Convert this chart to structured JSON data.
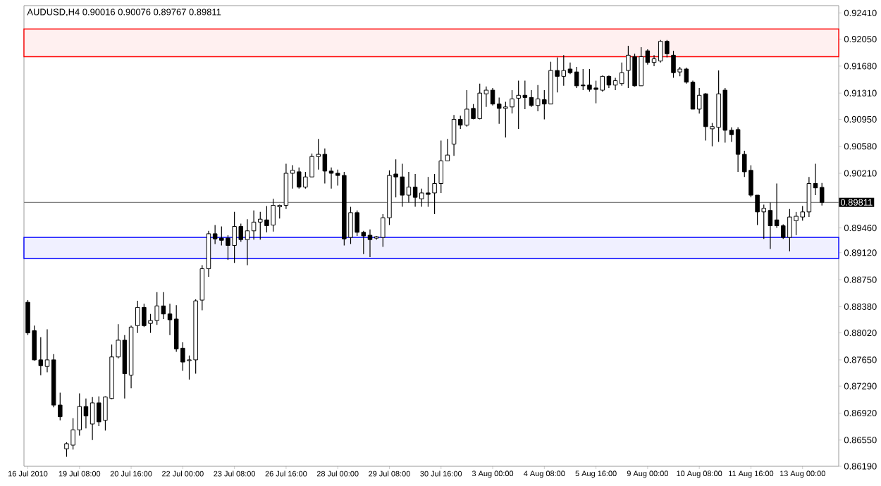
{
  "chart_data": {
    "type": "candlestick",
    "title": "AUDUSD,H4  0.90016 0.90076 0.89767 0.89811",
    "categories": [
      "16 Jul 2010",
      null,
      null,
      null,
      null,
      null,
      null,
      null,
      "19 Jul 08:00",
      null,
      null,
      null,
      null,
      null,
      null,
      null,
      "20 Jul 16:00",
      null,
      null,
      null,
      null,
      null,
      null,
      null,
      "22 Jul 00:00",
      null,
      null,
      null,
      null,
      null,
      null,
      null,
      "23 Jul 08:00",
      null,
      null,
      null,
      null,
      null,
      null,
      null,
      "26 Jul 16:00",
      null,
      null,
      null,
      null,
      null,
      null,
      null,
      "28 Jul 00:00",
      null,
      null,
      null,
      null,
      null,
      null,
      null,
      "29 Jul 08:00",
      null,
      null,
      null,
      null,
      null,
      null,
      null,
      "30 Jul 16:00",
      null,
      null,
      null,
      null,
      null,
      null,
      null,
      "3 Aug 00:00",
      null,
      null,
      null,
      null,
      null,
      null,
      null,
      "4 Aug 08:00",
      null,
      null,
      null,
      null,
      null,
      null,
      null,
      "5 Aug 16:00",
      null,
      null,
      null,
      null,
      null,
      null,
      null,
      "9 Aug 00:00",
      null,
      null,
      null,
      null,
      null,
      null,
      null,
      "10 Aug 08:00",
      null,
      null,
      null,
      null,
      null,
      null,
      null,
      "11 Aug 16:00",
      null,
      null,
      null,
      null,
      null,
      null,
      null,
      "13 Aug 00:00",
      null,
      null,
      null
    ],
    "ohlc": [
      [
        0.8844,
        0.8847,
        0.8799,
        0.8802
      ],
      [
        0.8805,
        0.8812,
        0.8764,
        0.8765
      ],
      [
        0.8765,
        0.8796,
        0.8744,
        0.8757
      ],
      [
        0.8756,
        0.8807,
        0.8748,
        0.8765
      ],
      [
        0.8765,
        0.8773,
        0.87,
        0.8703
      ],
      [
        0.8703,
        0.872,
        0.8682,
        0.8687
      ],
      [
        0.8643,
        0.8652,
        0.8632,
        0.865
      ],
      [
        0.8648,
        0.8685,
        0.8642,
        0.8669
      ],
      [
        0.8669,
        0.8719,
        0.8661,
        0.8701
      ],
      [
        0.8701,
        0.8712,
        0.8671,
        0.8688
      ],
      [
        0.8677,
        0.8714,
        0.8655,
        0.8706
      ],
      [
        0.8706,
        0.8715,
        0.8674,
        0.868
      ],
      [
        0.8682,
        0.8715,
        0.8668,
        0.8714
      ],
      [
        0.8712,
        0.8786,
        0.8711,
        0.8769
      ],
      [
        0.8769,
        0.8814,
        0.8767,
        0.8792
      ],
      [
        0.8792,
        0.8799,
        0.8712,
        0.8746
      ],
      [
        0.8744,
        0.8812,
        0.8726,
        0.881
      ],
      [
        0.8812,
        0.8846,
        0.8802,
        0.8837
      ],
      [
        0.8837,
        0.8842,
        0.881,
        0.8812
      ],
      [
        0.8815,
        0.8828,
        0.8802,
        0.8819
      ],
      [
        0.8819,
        0.8858,
        0.8813,
        0.8839
      ],
      [
        0.8839,
        0.8858,
        0.8821,
        0.8828
      ],
      [
        0.8828,
        0.8842,
        0.8799,
        0.882
      ],
      [
        0.8821,
        0.884,
        0.8776,
        0.878
      ],
      [
        0.8781,
        0.8789,
        0.875,
        0.8762
      ],
      [
        0.8764,
        0.8771,
        0.8738,
        0.8765
      ],
      [
        0.8765,
        0.8848,
        0.8746,
        0.8846
      ],
      [
        0.8847,
        0.8895,
        0.8833,
        0.889
      ],
      [
        0.889,
        0.8942,
        0.8879,
        0.8938
      ],
      [
        0.8938,
        0.895,
        0.8924,
        0.8931
      ],
      [
        0.8932,
        0.8948,
        0.8922,
        0.8929
      ],
      [
        0.8932,
        0.8936,
        0.8902,
        0.8922
      ],
      [
        0.8922,
        0.8968,
        0.8898,
        0.8948
      ],
      [
        0.8948,
        0.8952,
        0.8927,
        0.893
      ],
      [
        0.893,
        0.8958,
        0.8895,
        0.8942
      ],
      [
        0.8942,
        0.897,
        0.893,
        0.8954
      ],
      [
        0.8954,
        0.8968,
        0.893,
        0.8958
      ],
      [
        0.8957,
        0.8976,
        0.894,
        0.8949
      ],
      [
        0.895,
        0.8986,
        0.8941,
        0.8977
      ],
      [
        0.8975,
        0.8978,
        0.8959,
        0.8977
      ],
      [
        0.8977,
        0.9034,
        0.8972,
        0.9021
      ],
      [
        0.9021,
        0.9032,
        0.9,
        0.9025
      ],
      [
        0.9023,
        0.9029,
        0.9,
        0.9002
      ],
      [
        0.9002,
        0.9023,
        0.9,
        0.9016
      ],
      [
        0.9016,
        0.9048,
        0.9016,
        0.9044
      ],
      [
        0.9044,
        0.9068,
        0.9026,
        0.9047
      ],
      [
        0.9047,
        0.9055,
        0.9007,
        0.9024
      ],
      [
        0.9024,
        0.9029,
        0.9,
        0.9021
      ],
      [
        0.9021,
        0.9026,
        0.9004,
        0.9018
      ],
      [
        0.9018,
        0.9023,
        0.8922,
        0.8931
      ],
      [
        0.8933,
        0.8975,
        0.8924,
        0.8967
      ],
      [
        0.8967,
        0.897,
        0.8935,
        0.894
      ],
      [
        0.894,
        0.8942,
        0.891,
        0.8935
      ],
      [
        0.8936,
        0.8944,
        0.8906,
        0.893
      ],
      [
        0.8932,
        0.8935,
        0.893,
        0.8934
      ],
      [
        0.8933,
        0.8965,
        0.892,
        0.896
      ],
      [
        0.896,
        0.9025,
        0.895,
        0.9018
      ],
      [
        0.902,
        0.904,
        0.8988,
        0.9016
      ],
      [
        0.9016,
        0.9034,
        0.8975,
        0.8991
      ],
      [
        0.8991,
        0.9023,
        0.8981,
        0.9002
      ],
      [
        0.9002,
        0.902,
        0.8975,
        0.8988
      ],
      [
        0.8986,
        0.9,
        0.8975,
        0.8994
      ],
      [
        0.8994,
        0.9016,
        0.8975,
        0.8992
      ],
      [
        0.8994,
        0.902,
        0.8965,
        0.9007
      ],
      [
        0.9007,
        0.9066,
        0.8994,
        0.9038
      ],
      [
        0.9038,
        0.9068,
        0.9038,
        0.9046
      ],
      [
        0.9061,
        0.9101,
        0.9045,
        0.9095
      ],
      [
        0.9095,
        0.91,
        0.9082,
        0.9087
      ],
      [
        0.9087,
        0.9135,
        0.9085,
        0.9109
      ],
      [
        0.911,
        0.9116,
        0.9095,
        0.9096
      ],
      [
        0.9096,
        0.9144,
        0.9095,
        0.9131
      ],
      [
        0.913,
        0.914,
        0.9112,
        0.9135
      ],
      [
        0.9135,
        0.9138,
        0.9114,
        0.9116
      ],
      [
        0.9116,
        0.9125,
        0.9089,
        0.911
      ],
      [
        0.911,
        0.9119,
        0.907,
        0.9112
      ],
      [
        0.9112,
        0.9135,
        0.9103,
        0.9123
      ],
      [
        0.9124,
        0.9148,
        0.9082,
        0.9128
      ],
      [
        0.9128,
        0.9148,
        0.9109,
        0.9125
      ],
      [
        0.9125,
        0.9135,
        0.9112,
        0.9114
      ],
      [
        0.9114,
        0.9142,
        0.9106,
        0.9123
      ],
      [
        0.9122,
        0.9135,
        0.9095,
        0.9116
      ],
      [
        0.9116,
        0.9174,
        0.9116,
        0.9162
      ],
      [
        0.9162,
        0.918,
        0.9132,
        0.9154
      ],
      [
        0.9154,
        0.9183,
        0.9141,
        0.9162
      ],
      [
        0.9164,
        0.9173,
        0.9157,
        0.9159
      ],
      [
        0.916,
        0.9167,
        0.9138,
        0.9141
      ],
      [
        0.9142,
        0.9164,
        0.9135,
        0.9141
      ],
      [
        0.9142,
        0.9164,
        0.9133,
        0.9136
      ],
      [
        0.9138,
        0.9148,
        0.9117,
        0.9136
      ],
      [
        0.9135,
        0.9155,
        0.9133,
        0.9154
      ],
      [
        0.9154,
        0.9155,
        0.9138,
        0.9142
      ],
      [
        0.9142,
        0.9152,
        0.9135,
        0.9148
      ],
      [
        0.9144,
        0.9173,
        0.9141,
        0.9159
      ],
      [
        0.9162,
        0.9196,
        0.9138,
        0.9183
      ],
      [
        0.9181,
        0.9185,
        0.914,
        0.9141
      ],
      [
        0.9141,
        0.9194,
        0.9141,
        0.9181
      ],
      [
        0.9189,
        0.9191,
        0.917,
        0.9173
      ],
      [
        0.9173,
        0.9183,
        0.9168,
        0.9178
      ],
      [
        0.9175,
        0.9204,
        0.9173,
        0.9202
      ],
      [
        0.9202,
        0.9204,
        0.918,
        0.9185
      ],
      [
        0.9183,
        0.9189,
        0.9152,
        0.9159
      ],
      [
        0.916,
        0.9167,
        0.9154,
        0.9164
      ],
      [
        0.9164,
        0.9166,
        0.9144,
        0.9146
      ],
      [
        0.9146,
        0.9148,
        0.9109,
        0.9109
      ],
      [
        0.9109,
        0.9138,
        0.9103,
        0.9128
      ],
      [
        0.913,
        0.9131,
        0.9066,
        0.9085
      ],
      [
        0.9082,
        0.909,
        0.9058,
        0.9085
      ],
      [
        0.9084,
        0.9162,
        0.9064,
        0.913
      ],
      [
        0.9135,
        0.9138,
        0.9063,
        0.908
      ],
      [
        0.908,
        0.9084,
        0.9064,
        0.9074
      ],
      [
        0.9081,
        0.9084,
        0.9023,
        0.9047
      ],
      [
        0.9047,
        0.9052,
        0.9016,
        0.9023
      ],
      [
        0.9025,
        0.9032,
        0.8988,
        0.8991
      ],
      [
        0.8991,
        0.8991,
        0.895,
        0.8968
      ],
      [
        0.8968,
        0.8978,
        0.8931,
        0.8973
      ],
      [
        0.897,
        0.8981,
        0.8917,
        0.8949
      ],
      [
        0.8957,
        0.9007,
        0.8946,
        0.8949
      ],
      [
        0.8949,
        0.8951,
        0.8931,
        0.8933
      ],
      [
        0.8933,
        0.8972,
        0.8914,
        0.8961
      ],
      [
        0.8956,
        0.8968,
        0.8936,
        0.8962
      ],
      [
        0.8961,
        0.8976,
        0.8956,
        0.8968
      ],
      [
        0.8968,
        0.9016,
        0.8961,
        0.9007
      ],
      [
        0.9007,
        0.9034,
        0.8991,
        0.9001
      ],
      [
        0.90016,
        0.90076,
        0.89767,
        0.89811
      ]
    ],
    "ylim": [
      0.8619,
      0.9251
    ],
    "yticks": [
      {
        "value": 0.9241,
        "label": "0.92410"
      },
      {
        "value": 0.9205,
        "label": "0.92050"
      },
      {
        "value": 0.9168,
        "label": "0.91680"
      },
      {
        "value": 0.9131,
        "label": "0.91310"
      },
      {
        "value": 0.9095,
        "label": "0.90950"
      },
      {
        "value": 0.9058,
        "label": "0.90580"
      },
      {
        "value": 0.9021,
        "label": "0.90210"
      },
      {
        "value": 0.8946,
        "label": "0.89460"
      },
      {
        "value": 0.8912,
        "label": "0.89120"
      },
      {
        "value": 0.8875,
        "label": "0.88750"
      },
      {
        "value": 0.8838,
        "label": "0.88380"
      },
      {
        "value": 0.8802,
        "label": "0.88020"
      },
      {
        "value": 0.8765,
        "label": "0.87650"
      },
      {
        "value": 0.8729,
        "label": "0.87290"
      },
      {
        "value": 0.8692,
        "label": "0.86920"
      },
      {
        "value": 0.8655,
        "label": "0.86550"
      },
      {
        "value": 0.8619,
        "label": "0.86190"
      }
    ],
    "ref_lines": [
      {
        "axis": "y",
        "value": 0.89811,
        "label": "0.89811",
        "color": "#808080"
      }
    ],
    "bands": [
      {
        "axis": "y",
        "from": 0.9181,
        "to": 0.9219,
        "color": "#ff0000"
      },
      {
        "axis": "y",
        "from": 0.8904,
        "to": 0.8933,
        "color": "#0000ff"
      }
    ]
  }
}
